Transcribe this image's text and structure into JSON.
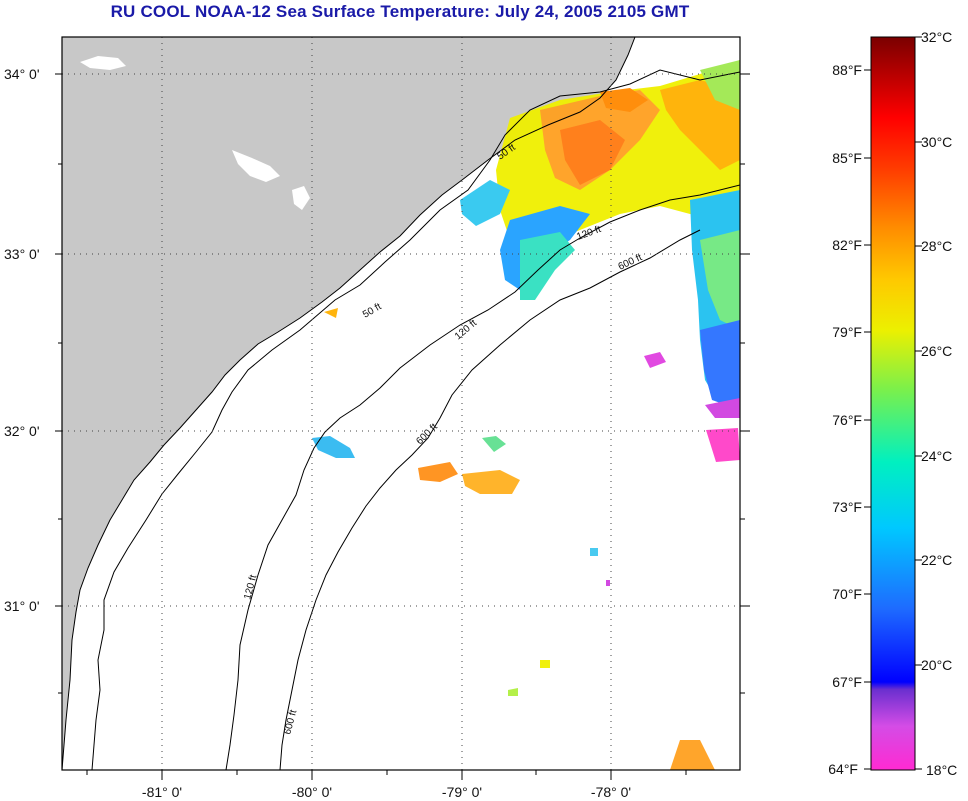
{
  "title": "RU COOL  NOAA-12  Sea Surface Temperature:  July 24, 2005 2105 GMT",
  "map": {
    "lat_ticks": [
      "34° 0'",
      "33° 0'",
      "32° 0'",
      "31° 0'"
    ],
    "lon_ticks": [
      "-81° 0'",
      "-80° 0'",
      "-79° 0'",
      "-78° 0'"
    ],
    "contour_labels": [
      "50 ft",
      "120 ft",
      "600 ft"
    ],
    "land_color": "#c8c8c8",
    "ocean_color": "#ffffff"
  },
  "colorbar": {
    "fahrenheit_labels": [
      "88°F",
      "85°F",
      "82°F",
      "79°F",
      "76°F",
      "73°F",
      "70°F",
      "67°F",
      "64°F"
    ],
    "celsius_labels": [
      "32°C",
      "30°C",
      "28°C",
      "26°C",
      "24°C",
      "22°C",
      "20°C",
      "18°C"
    ],
    "min_c": 18,
    "max_c": 32
  }
}
